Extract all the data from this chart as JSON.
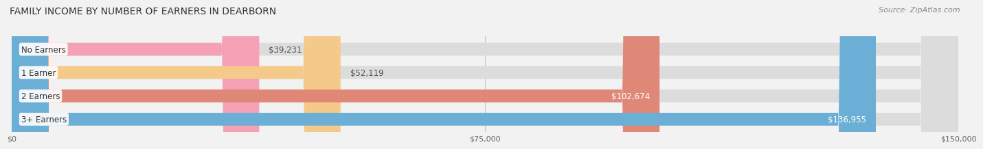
{
  "title": "FAMILY INCOME BY NUMBER OF EARNERS IN DEARBORN",
  "source": "Source: ZipAtlas.com",
  "categories": [
    "No Earners",
    "1 Earner",
    "2 Earners",
    "3+ Earners"
  ],
  "values": [
    39231,
    52119,
    102674,
    136955
  ],
  "bar_colors": [
    "#f4a0b5",
    "#f5c98a",
    "#e08878",
    "#6baed6"
  ],
  "label_colors": [
    "#555555",
    "#555555",
    "#ffffff",
    "#ffffff"
  ],
  "bar_bg_color": "#dcdcdc",
  "xlim": [
    0,
    150000
  ],
  "xticks": [
    0,
    75000,
    150000
  ],
  "xtick_labels": [
    "$0",
    "$75,000",
    "$150,000"
  ],
  "value_labels": [
    "$39,231",
    "$52,119",
    "$102,674",
    "$136,955"
  ],
  "fig_bg_color": "#f2f2f2",
  "bar_height": 0.55,
  "title_fontsize": 10,
  "source_fontsize": 8,
  "label_fontsize": 8.5,
  "value_fontsize": 8.5
}
